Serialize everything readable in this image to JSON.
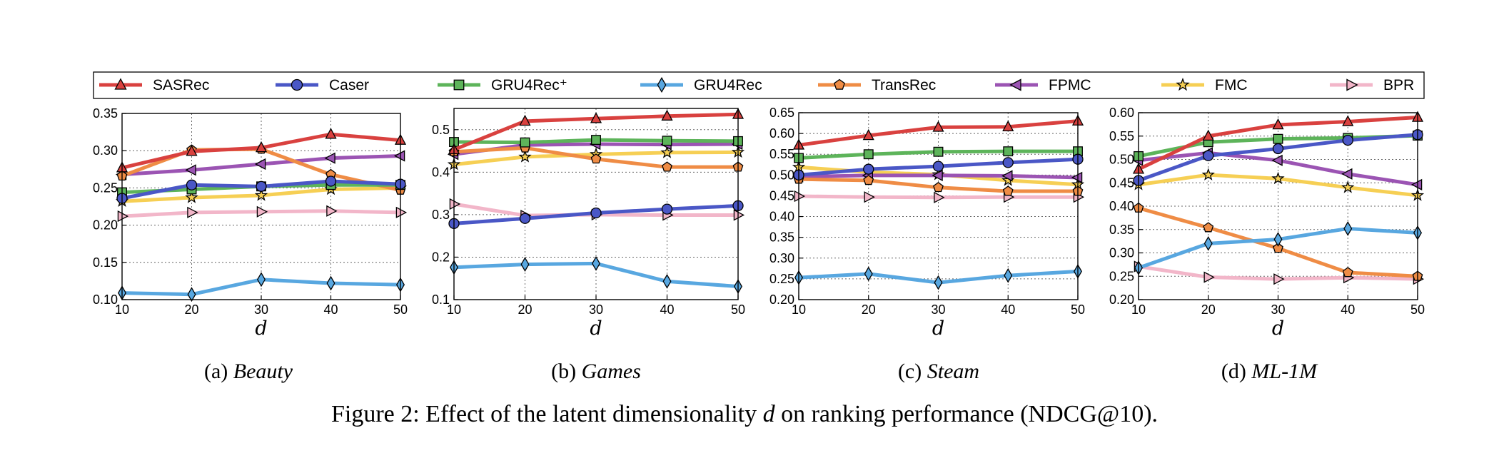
{
  "figure": {
    "caption": "Figure 2: Effect of the latent dimensionality d on ranking performance (NDCG@10).",
    "caption_parts": {
      "before": "Figure 2: Effect of the latent dimensionality ",
      "var": "d",
      "after": " on ranking performance (NDCG@10)."
    }
  },
  "legend": [
    {
      "name": "SASRec",
      "color": "#d9413f",
      "marker": "triangle-up"
    },
    {
      "name": "Caser",
      "color": "#4a57c6",
      "marker": "circle"
    },
    {
      "name": "GRU4Rec⁺",
      "color": "#5db45a",
      "marker": "square"
    },
    {
      "name": "GRU4Rec",
      "color": "#58a7e0",
      "marker": "diamond"
    },
    {
      "name": "TransRec",
      "color": "#ef8c45",
      "marker": "pentagon"
    },
    {
      "name": "FPMC",
      "color": "#9b54b3",
      "marker": "triangle-left"
    },
    {
      "name": "FMC",
      "color": "#f6cf54",
      "marker": "star"
    },
    {
      "name": "BPR",
      "color": "#f2b6c9",
      "marker": "triangle-right"
    }
  ],
  "chart_data": [
    {
      "type": "line",
      "caption_label": "(a)",
      "dataset": "Beauty",
      "xlabel": "d",
      "x": [
        10,
        20,
        30,
        40,
        50
      ],
      "xlim": [
        10,
        50
      ],
      "ylim": [
        0.1,
        0.35
      ],
      "yticks": [
        "0.10",
        "0.15",
        "0.20",
        "0.25",
        "0.30",
        "0.35"
      ],
      "grid": true,
      "series": [
        {
          "name": "SASRec",
          "values": [
            0.277,
            0.299,
            0.304,
            0.322,
            0.314
          ]
        },
        {
          "name": "Caser",
          "values": [
            0.236,
            0.254,
            0.252,
            0.259,
            0.255
          ]
        },
        {
          "name": "GRU4Rec⁺",
          "values": [
            0.244,
            0.248,
            0.252,
            0.254,
            0.254
          ]
        },
        {
          "name": "GRU4Rec",
          "values": [
            0.109,
            0.107,
            0.127,
            0.122,
            0.12
          ]
        },
        {
          "name": "TransRec",
          "values": [
            0.266,
            0.301,
            0.302,
            0.268,
            0.247
          ]
        },
        {
          "name": "FPMC",
          "values": [
            0.268,
            0.274,
            0.282,
            0.29,
            0.293
          ]
        },
        {
          "name": "FMC",
          "values": [
            0.232,
            0.237,
            0.24,
            0.248,
            0.25
          ]
        },
        {
          "name": "BPR",
          "values": [
            0.212,
            0.217,
            0.218,
            0.219,
            0.217
          ]
        }
      ]
    },
    {
      "type": "line",
      "caption_label": "(b)",
      "dataset": "Games",
      "xlabel": "d",
      "x": [
        10,
        20,
        30,
        40,
        50
      ],
      "xlim": [
        10,
        50
      ],
      "ylim": [
        0.1,
        0.55
      ],
      "yticks": [
        "0.1",
        "0.2",
        "0.3",
        "0.4",
        "0.5"
      ],
      "grid": true,
      "series": [
        {
          "name": "SASRec",
          "values": [
            0.453,
            0.52,
            0.526,
            0.532,
            0.536
          ]
        },
        {
          "name": "Caser",
          "values": [
            0.279,
            0.291,
            0.304,
            0.313,
            0.321
          ]
        },
        {
          "name": "GRU4Rec⁺",
          "values": [
            0.471,
            0.47,
            0.476,
            0.474,
            0.473
          ]
        },
        {
          "name": "GRU4Rec",
          "values": [
            0.176,
            0.183,
            0.185,
            0.143,
            0.131
          ]
        },
        {
          "name": "TransRec",
          "values": [
            0.448,
            0.457,
            0.431,
            0.412,
            0.412
          ]
        },
        {
          "name": "FPMC",
          "values": [
            0.442,
            0.464,
            0.466,
            0.465,
            0.466
          ]
        },
        {
          "name": "FMC",
          "values": [
            0.418,
            0.436,
            0.442,
            0.446,
            0.447
          ]
        },
        {
          "name": "BPR",
          "values": [
            0.325,
            0.298,
            0.3,
            0.299,
            0.299
          ]
        }
      ]
    },
    {
      "type": "line",
      "caption_label": "(c)",
      "dataset": "Steam",
      "xlabel": "d",
      "x": [
        10,
        20,
        30,
        40,
        50
      ],
      "xlim": [
        10,
        50
      ],
      "ylim": [
        0.2,
        0.65
      ],
      "yticks": [
        "0.20",
        "0.25",
        "0.30",
        "0.35",
        "0.40",
        "0.45",
        "0.50",
        "0.55",
        "0.60",
        "0.65"
      ],
      "grid": true,
      "series": [
        {
          "name": "SASRec",
          "values": [
            0.572,
            0.595,
            0.615,
            0.616,
            0.63
          ]
        },
        {
          "name": "Caser",
          "values": [
            0.5,
            0.514,
            0.521,
            0.53,
            0.538
          ]
        },
        {
          "name": "GRU4Rec⁺",
          "values": [
            0.541,
            0.55,
            0.556,
            0.557,
            0.557
          ]
        },
        {
          "name": "GRU4Rec",
          "values": [
            0.253,
            0.262,
            0.241,
            0.258,
            0.268
          ]
        },
        {
          "name": "TransRec",
          "values": [
            0.49,
            0.487,
            0.47,
            0.461,
            0.461
          ]
        },
        {
          "name": "FPMC",
          "values": [
            0.496,
            0.499,
            0.499,
            0.498,
            0.494
          ]
        },
        {
          "name": "FMC",
          "values": [
            0.519,
            0.507,
            0.501,
            0.487,
            0.477
          ]
        },
        {
          "name": "BPR",
          "values": [
            0.449,
            0.447,
            0.446,
            0.447,
            0.447
          ]
        }
      ]
    },
    {
      "type": "line",
      "caption_label": "(d)",
      "dataset": "ML-1M",
      "xlabel": "d",
      "x": [
        10,
        20,
        30,
        40,
        50
      ],
      "xlim": [
        10,
        50
      ],
      "ylim": [
        0.2,
        0.6
      ],
      "yticks": [
        "0.20",
        "0.25",
        "0.30",
        "0.35",
        "0.40",
        "0.45",
        "0.50",
        "0.55",
        "0.60"
      ],
      "grid": true,
      "series": [
        {
          "name": "SASRec",
          "values": [
            0.479,
            0.55,
            0.574,
            0.581,
            0.59
          ]
        },
        {
          "name": "Caser",
          "values": [
            0.455,
            0.508,
            0.523,
            0.541,
            0.553
          ]
        },
        {
          "name": "GRU4Rec⁺",
          "values": [
            0.507,
            0.537,
            0.544,
            0.546,
            0.551
          ]
        },
        {
          "name": "GRU4Rec",
          "values": [
            0.268,
            0.32,
            0.329,
            0.352,
            0.343
          ]
        },
        {
          "name": "TransRec",
          "values": [
            0.396,
            0.354,
            0.31,
            0.258,
            0.25
          ]
        },
        {
          "name": "FPMC",
          "values": [
            0.498,
            0.514,
            0.498,
            0.469,
            0.446
          ]
        },
        {
          "name": "FMC",
          "values": [
            0.446,
            0.467,
            0.459,
            0.44,
            0.423
          ]
        },
        {
          "name": "BPR",
          "values": [
            0.271,
            0.248,
            0.244,
            0.247,
            0.244
          ]
        }
      ]
    }
  ]
}
